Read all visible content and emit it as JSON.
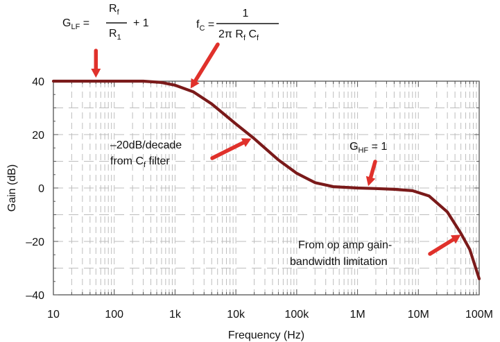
{
  "chart_data": {
    "type": "line",
    "xscale": "log",
    "xlabel": "Frequency (Hz)",
    "ylabel": "Gain (dB)",
    "xlim": [
      10,
      100000000
    ],
    "ylim": [
      -40,
      40
    ],
    "grid": true,
    "x_ticks": [
      {
        "value": 10,
        "label": "10"
      },
      {
        "value": 100,
        "label": "100"
      },
      {
        "value": 1000,
        "label": "1k"
      },
      {
        "value": 10000,
        "label": "10k"
      },
      {
        "value": 100000,
        "label": "100k"
      },
      {
        "value": 1000000,
        "label": "1M"
      },
      {
        "value": 10000000,
        "label": "10M"
      },
      {
        "value": 100000000,
        "label": "100M"
      }
    ],
    "y_ticks": [
      {
        "value": 40,
        "label": "40"
      },
      {
        "value": 20,
        "label": "20"
      },
      {
        "value": 0,
        "label": "0"
      },
      {
        "value": -20,
        "label": "–20"
      },
      {
        "value": -40,
        "label": "–40"
      }
    ],
    "series": [
      {
        "color": "#7a1a1a",
        "x": [
          10,
          100,
          300,
          600,
          1000,
          2000,
          4000,
          10000,
          20000,
          50000,
          100000,
          200000,
          400000,
          1000000,
          2000000,
          4000000,
          8000000,
          15000000,
          30000000,
          50000000,
          70000000,
          100000000
        ],
        "y": [
          40,
          40,
          40,
          39.5,
          38.5,
          36,
          31.5,
          24,
          18.5,
          10.5,
          5.5,
          2,
          0.5,
          0,
          -0.2,
          -0.5,
          -1,
          -3,
          -9,
          -17,
          -23,
          -34
        ]
      }
    ],
    "annotations": [
      {
        "id": "glf",
        "main": "G",
        "sub": "LF",
        "tail": " =",
        "num_main": "R",
        "num_sub": "f",
        "den_main": "R",
        "den_sub": "1",
        "after": "+ 1"
      },
      {
        "id": "fc",
        "main": "f",
        "sub": "C",
        "tail": " =",
        "num": "1",
        "den_prefix": "2π R",
        "den_sub1": "f",
        "den_mid": " C",
        "den_sub2": "f"
      },
      {
        "id": "slope",
        "line1": "–20dB/decade",
        "line2_pre": "from C",
        "line2_sub": "f",
        "line2_post": " filter"
      },
      {
        "id": "ghf",
        "main": "G",
        "sub": "HF",
        "tail": " = 1"
      },
      {
        "id": "gbw",
        "line1": "From op amp gain-",
        "line2": "bandwidth limitation"
      }
    ],
    "arrow_color": "#e0312b"
  }
}
